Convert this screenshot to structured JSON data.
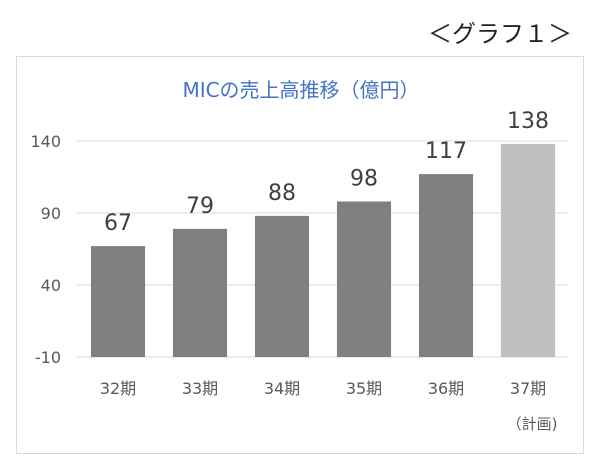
{
  "page": {
    "graph_tag": "＜グラフ１＞"
  },
  "chart_data": {
    "type": "bar",
    "title": "MICの売上高推移（億円）",
    "categories": [
      "32期",
      "33期",
      "34期",
      "35期",
      "36期",
      "37期"
    ],
    "category_notes": [
      "",
      "",
      "",
      "",
      "",
      "（計画)"
    ],
    "values": [
      67,
      79,
      88,
      98,
      117,
      138
    ],
    "data_labels": [
      "67",
      "79",
      "88",
      "98",
      "117",
      "138"
    ],
    "yticks": [
      -10,
      40,
      90,
      140
    ],
    "ytick_labels": [
      "-10",
      "40",
      "90",
      "140"
    ],
    "ylim": [
      -10,
      140
    ],
    "grid": true,
    "legend": "none",
    "colors": {
      "title": "#4472c4",
      "bar_actual": "#808080",
      "bar_plan": "#bfbfbf",
      "grid": "#d9d9d9",
      "axis_text": "#595959",
      "label_text": "#404040"
    },
    "planned_index": 5
  }
}
